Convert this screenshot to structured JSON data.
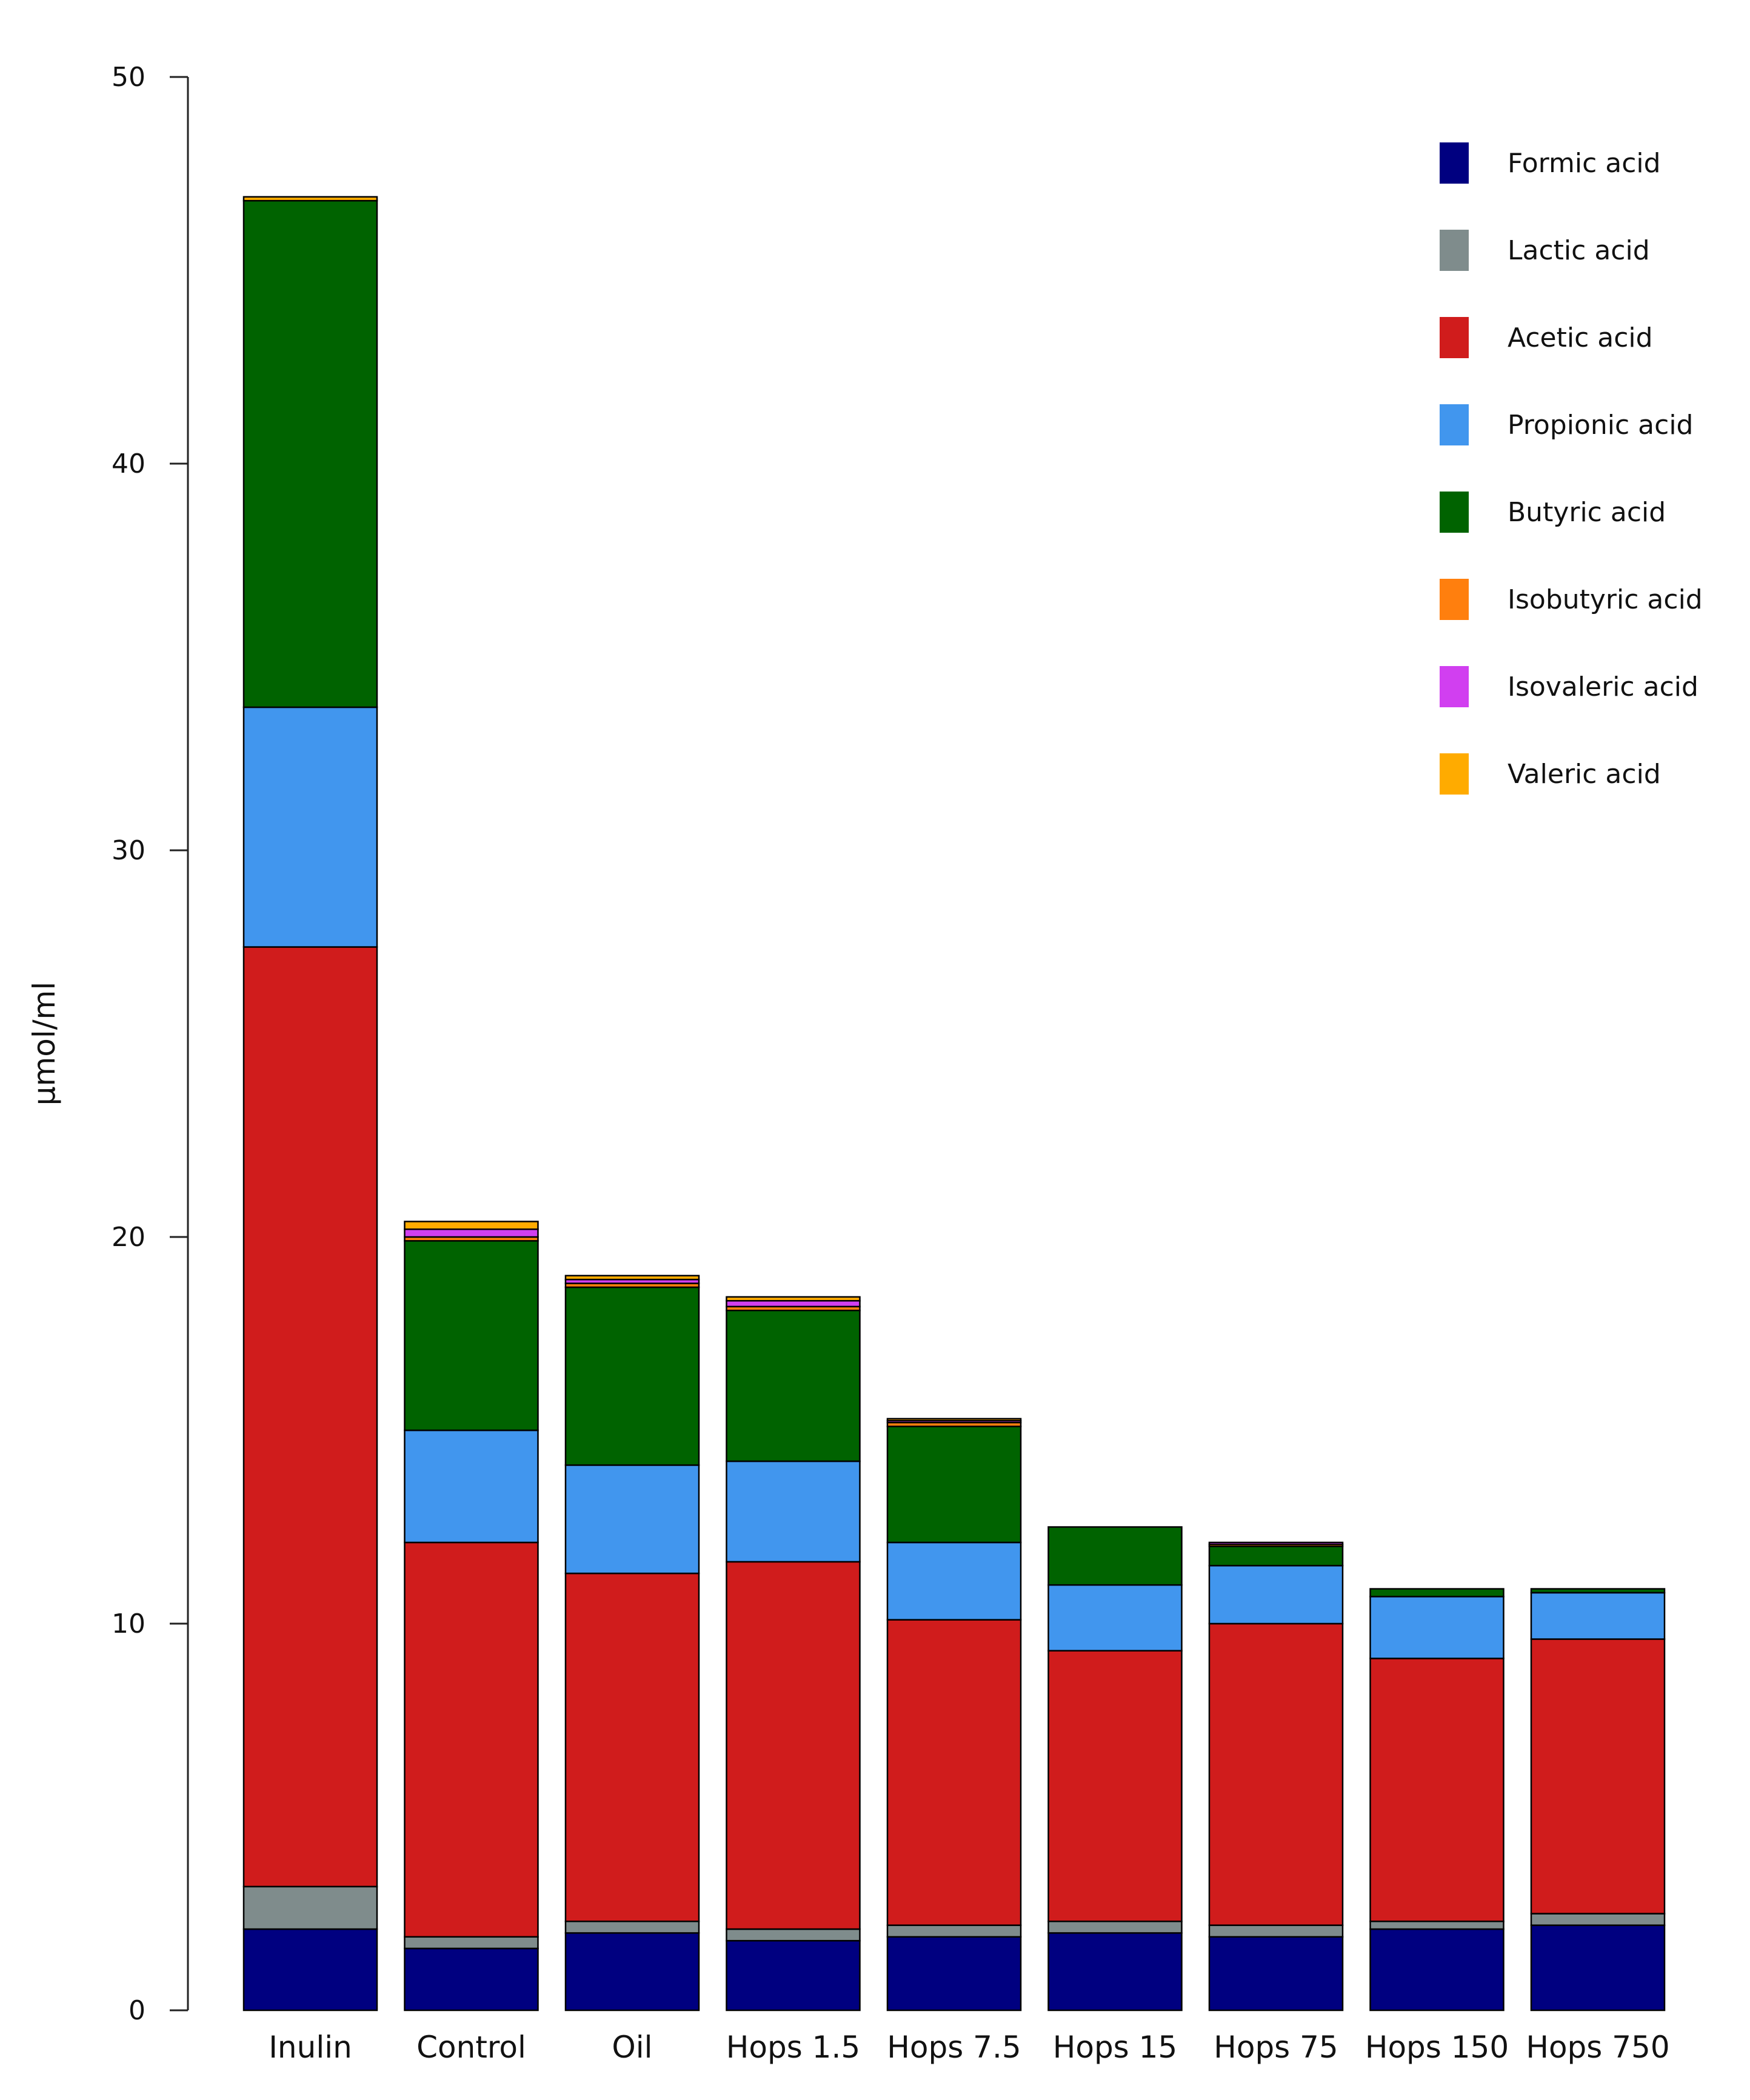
{
  "chart_data": {
    "type": "bar",
    "stacked": true,
    "title": "",
    "xlabel": "",
    "ylabel": "µmol/ml",
    "ylim": [
      0,
      50
    ],
    "yticks": [
      0,
      10,
      20,
      30,
      40,
      50
    ],
    "legend_position": "top-right",
    "grid": false,
    "categories": [
      "Inulin",
      "Control",
      "Oil",
      "Hops 1.5",
      "Hops 7.5",
      "Hops 15",
      "Hops 75",
      "Hops 150",
      "Hops 750"
    ],
    "series": [
      {
        "name": "Formic acid",
        "color": "#000080",
        "values": [
          2.1,
          1.6,
          2.0,
          1.8,
          1.9,
          2.0,
          1.9,
          2.1,
          2.2
        ]
      },
      {
        "name": "Lactic acid",
        "color": "#7f8c8c",
        "values": [
          1.1,
          0.3,
          0.3,
          0.3,
          0.3,
          0.3,
          0.3,
          0.2,
          0.3
        ]
      },
      {
        "name": "Acetic acid",
        "color": "#d01c1c",
        "values": [
          24.3,
          10.2,
          9.0,
          9.5,
          7.9,
          7.0,
          7.8,
          6.8,
          7.1
        ]
      },
      {
        "name": "Propionic acid",
        "color": "#4196ee",
        "values": [
          6.2,
          2.9,
          2.8,
          2.6,
          2.0,
          1.7,
          1.5,
          1.6,
          1.2
        ]
      },
      {
        "name": "Butyric acid",
        "color": "#006300",
        "values": [
          13.1,
          4.9,
          4.6,
          3.9,
          3.0,
          1.5,
          0.5,
          0.2,
          0.1
        ]
      },
      {
        "name": "Isobutyric acid",
        "color": "#ff7f0e",
        "values": [
          0.0,
          0.1,
          0.1,
          0.1,
          0.1,
          0.0,
          0.05,
          0.0,
          0.0
        ]
      },
      {
        "name": "Isovaleric acid",
        "color": "#d13ff0",
        "values": [
          0.0,
          0.2,
          0.1,
          0.15,
          0.05,
          0.0,
          0.05,
          0.0,
          0.0
        ]
      },
      {
        "name": "Valeric acid",
        "color": "#ffab00",
        "values": [
          0.1,
          0.2,
          0.1,
          0.1,
          0.05,
          0.0,
          0.0,
          0.0,
          0.0
        ]
      }
    ]
  }
}
